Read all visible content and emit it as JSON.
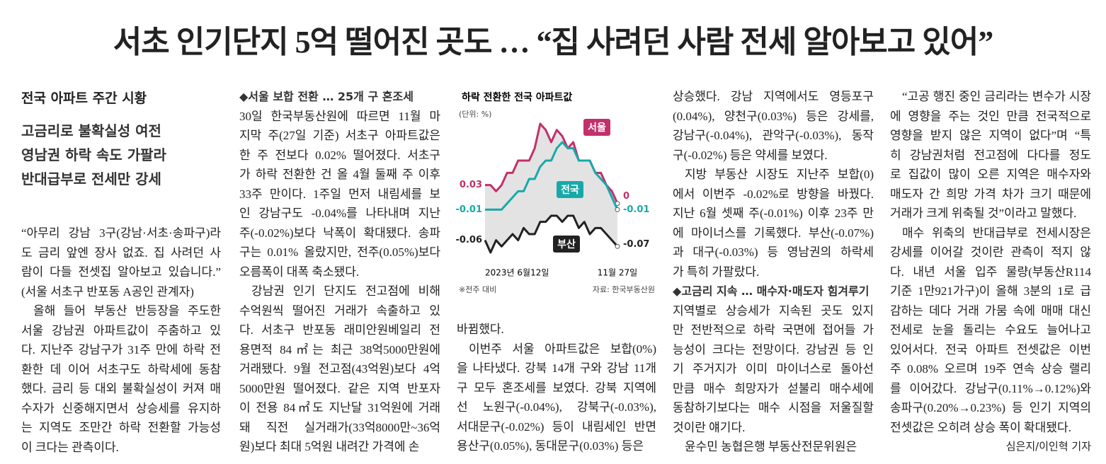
{
  "headline": "서초 인기단지 5억 떨어진 곳도 … “집 사려던 사람 전세 알아보고 있어”",
  "summary": {
    "kicker": "전국 아파트 주간 시황",
    "lines": [
      "고금리로 불확실성 여전",
      "영남권 하락 속도 가팔라",
      "반대급부로 전세만 강세"
    ]
  },
  "columns": [
    {
      "blocks": [
        {
          "lines": [
            "“아무리 강남 3구(강남·서초·송파구)라",
            "도 금리 앞엔 장사 없죠. 집 사려던 사",
            "람이 다들 전셋집 알아보고 있습니다.”",
            "(서울 서초구 반포동 A공인 관계자)"
          ]
        },
        {
          "lines": [
            "올해 들어 부동산 반등장을 주도한",
            "서울 강남권 아파트값이 주춤하고 있",
            "다. 지난주 강남구가 31주 만에 하락 전",
            "환한 데 이어 서초구도 하락세에 동참",
            "했다. 금리 등 대외 불확실성이 커져 매",
            "수자가 신중해지면서 상승세를 유지하",
            "는 지역도 조만간 하락 전환할 가능성",
            "이 크다는 관측이다."
          ]
        }
      ]
    },
    {
      "blocks": [
        {
          "subhead": "◆서울 보합 전환 … 25개 구 혼조세"
        },
        {
          "lines": [
            "30일 한국부동산원에 따르면 11월 마",
            "지막 주(27일 기준) 서초구 아파트값은",
            "한 주 전보다 0.02% 떨어졌다. 서초구",
            "가 하락 전환한 건 올 4월 둘째 주 이후",
            "33주 만이다. 1주일 먼저 내림세를 보",
            "인 강남구도 -0.04%를 나타내며 지난",
            "주(-0.02%)보다 낙폭이 확대됐다. 송파",
            "구는 0.01% 올랐지만, 전주(0.05%)보다",
            "오름폭이 대폭 축소됐다."
          ]
        },
        {
          "lines": [
            "강남권 인기 단지도 전고점에 비해",
            "수억원씩 떨어진 거래가 속출하고 있",
            "다. 서초구 반포동 래미안원베일리 전",
            "용면적 84㎡는 최근 38억5000만원에",
            "거래됐다. 9월 전고점(43억원)보다 4억",
            "5000만원 떨어졌다. 같은 지역 반포자",
            "이 전용 84㎡도 지난달 31억원에 거래",
            "돼 직전 실거래가(33억8000만~36억",
            "원)보다 최대 5억원 내려간 가격에 손"
          ]
        }
      ]
    },
    {
      "blocks": [
        {
          "lines": [
            "바뀜했다."
          ]
        },
        {
          "lines": [
            "이번주 서울 아파트값은 보합(0%)",
            "을 나타냈다. 강북 14개 구와 강남 11개",
            "구 모두 혼조세를 보였다. 강북 지역에",
            "선 노원구(-0.04%), 강북구(-0.03%),",
            "서대문구(-0.02%) 등이 내림세인 반면",
            "용산구(0.05%), 동대문구(0.03%) 등은"
          ]
        }
      ]
    },
    {
      "blocks": [
        {
          "lines": [
            "상승했다. 강남 지역에서도 영등포구",
            "(0.04%), 양천구(0.03%) 등은 강세를,",
            "강남구(-0.04%), 관악구(-0.03%), 동작",
            "구(-0.02%) 등은 약세를 보였다."
          ]
        },
        {
          "lines": [
            "지방 부동산 시장도 지난주 보합(0)",
            "에서 이번주 -0.02%로 방향을 바꿨다.",
            "지난 6월 셋째 주(-0.01%) 이후 23주 만",
            "에 마이너스를 기록했다. 부산(-0.07%)",
            "과 대구(-0.03%) 등 영남권의 하락세",
            "가 특히 가팔랐다."
          ]
        },
        {
          "subhead": "◆고금리 지속 … 매수자·매도자 힘겨루기"
        },
        {
          "lines": [
            "지역별로 상승세가 지속된 곳도 있지",
            "만 전반적으로 하락 국면에 접어들 가",
            "능성이 크다는 전망이다. 강남권 등 인",
            "기 주거지가 이미 마이너스로 돌아선",
            "만큼 매수 희망자가 섣불리 매수세에",
            "동참하기보다는 매수 시점을 저울질할",
            "것이란 얘기다."
          ]
        },
        {
          "lines": [
            "윤수민 농협은행 부동산전문위원은"
          ]
        }
      ]
    },
    {
      "blocks": [
        {
          "lines": [
            "“고공 행진 중인 금리라는 변수가 시장",
            "에 영향을 주는 것인 만큼 전국적으로",
            "영향을 받지 않은 지역이 없다”며 “특",
            "히 강남권처럼 전고점에 다다를 정도",
            "로 집값이 많이 오른 지역은 매수자와",
            "매도자 간 희망 가격 차가 크기 때문에",
            "거래가 크게 위축될 것”이라고 말했다."
          ]
        },
        {
          "lines": [
            "매수 위축의 반대급부로 전세시장은",
            "강세를 이어갈 것이란 관측이 적지 않",
            "다. 내년 서울 입주 물량(부동산R114",
            "기준 1만921가구)이 올해 3분의 1로 급",
            "감하는 데다 거래 가뭄 속에 매매 대신",
            "전세로 눈을 돌리는 수요도 늘어나고",
            "있어서다. 전국 아파트 전셋값은 이번",
            "주 0.08% 오르며 19주 연속 상승 랠리",
            "를 이어갔다. 강남구(0.11%→0.12%)와",
            "송파구(0.20%→0.23%) 등 인기 지역의",
            "전셋값은 오히려 상승 폭이 확대됐다."
          ]
        }
      ]
    }
  ],
  "byline": "심은지/이인혁 기자",
  "chart_data": {
    "type": "line",
    "title": "하락 전환한 전국 아파트값",
    "unit_note": "(단위: %)",
    "note": "※전주 대비",
    "source": "자료: 한국부동산원",
    "categories": [
      "2023년 6월12일",
      null,
      null,
      null,
      null,
      null,
      null,
      null,
      null,
      null,
      null,
      null,
      null,
      null,
      null,
      null,
      null,
      null,
      null,
      null,
      null,
      null,
      null,
      null,
      "11월 27일"
    ],
    "series": [
      {
        "name": "서울",
        "color": "#c2306b",
        "values": [
          0.03,
          0.03,
          0.02,
          0.03,
          0.05,
          0.05,
          0.07,
          0.07,
          0.07,
          0.09,
          0.13,
          0.12,
          0.1,
          0.12,
          0.11,
          0.09,
          0.1,
          0.07,
          0.07,
          0.07,
          0.05,
          0.05,
          0.03,
          0.02,
          0
        ]
      },
      {
        "name": "전국",
        "color": "#17a9aa",
        "values": [
          -0.01,
          -0.01,
          -0.01,
          -0.01,
          0,
          0.01,
          0.02,
          0.02,
          0.04,
          0.04,
          0.06,
          0.07,
          0.07,
          0.09,
          0.1,
          0.09,
          0.09,
          0.07,
          0.07,
          0.07,
          0.05,
          0.04,
          0.03,
          0.01,
          -0.01
        ]
      },
      {
        "name": "부산",
        "color": "#222222",
        "values": [
          -0.06,
          -0.08,
          -0.06,
          -0.07,
          -0.06,
          -0.05,
          -0.06,
          -0.04,
          -0.05,
          -0.05,
          -0.03,
          -0.03,
          -0.02,
          -0.02,
          -0.03,
          -0.02,
          -0.02,
          -0.04,
          -0.03,
          -0.05,
          -0.04,
          -0.04,
          -0.05,
          -0.06,
          -0.07
        ]
      }
    ]
  }
}
